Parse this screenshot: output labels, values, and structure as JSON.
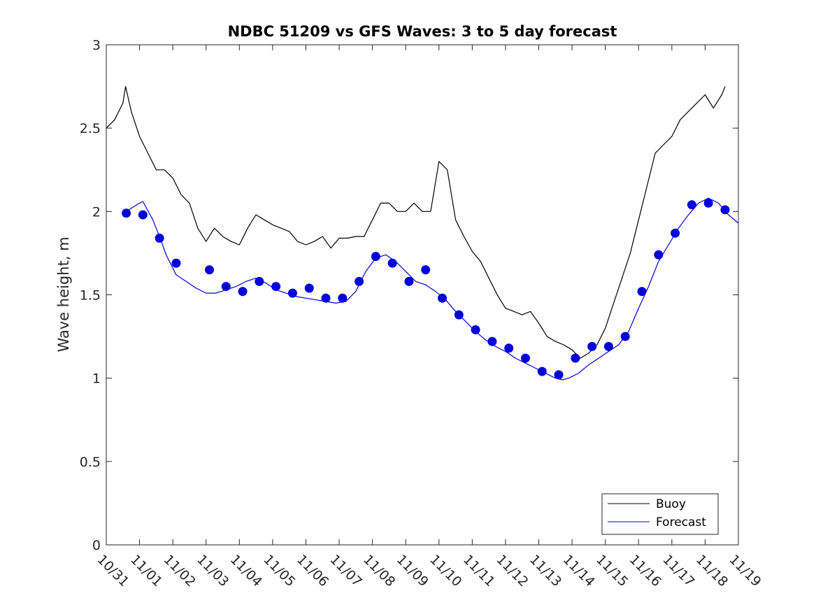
{
  "chart_data": {
    "type": "line",
    "title": "NDBC 51209 vs GFS Waves: 3 to 5 day forecast",
    "xlabel": "",
    "ylabel": "Wave height, m",
    "xlim": [
      0,
      19
    ],
    "ylim": [
      0,
      3
    ],
    "x_ticks": [
      0,
      1,
      2,
      3,
      4,
      5,
      6,
      7,
      8,
      9,
      10,
      11,
      12,
      13,
      14,
      15,
      16,
      17,
      18,
      19
    ],
    "x_tick_labels": [
      "10/31",
      "11/01",
      "11/02",
      "11/03",
      "11/04",
      "11/05",
      "11/06",
      "11/07",
      "11/08",
      "11/09",
      "11/10",
      "11/11",
      "11/12",
      "11/13",
      "11/14",
      "11/15",
      "11/16",
      "11/17",
      "11/18",
      "11/19"
    ],
    "y_ticks": [
      0,
      0.5,
      1,
      1.5,
      2,
      2.5,
      3
    ],
    "y_tick_labels": [
      "0",
      "0.5",
      "1",
      "1.5",
      "2",
      "2.5",
      "3"
    ],
    "grid": false,
    "legend": {
      "location": "bottom-right",
      "entries": [
        "Buoy",
        "Forecast"
      ]
    },
    "series": [
      {
        "name": "Buoy",
        "color": "#000000",
        "x": [
          0.0,
          0.25,
          0.5,
          0.58,
          0.75,
          1.0,
          1.25,
          1.5,
          1.75,
          2.0,
          2.25,
          2.5,
          2.75,
          3.0,
          3.25,
          3.5,
          3.75,
          4.0,
          4.25,
          4.5,
          4.75,
          5.0,
          5.25,
          5.5,
          5.75,
          6.0,
          6.25,
          6.5,
          6.75,
          7.0,
          7.25,
          7.5,
          7.75,
          8.0,
          8.25,
          8.5,
          8.75,
          9.0,
          9.25,
          9.5,
          9.75,
          10.0,
          10.25,
          10.5,
          10.75,
          11.0,
          11.25,
          11.5,
          11.75,
          12.0,
          12.25,
          12.5,
          12.75,
          13.0,
          13.25,
          13.5,
          13.75,
          14.0,
          14.25,
          14.5,
          14.75,
          15.0,
          15.25,
          15.5,
          15.75,
          16.0,
          16.25,
          16.5,
          16.75,
          17.0,
          17.25,
          17.5,
          17.75,
          18.0,
          18.25,
          18.5,
          18.6
        ],
        "values": [
          2.5,
          2.55,
          2.65,
          2.75,
          2.6,
          2.45,
          2.35,
          2.25,
          2.25,
          2.2,
          2.1,
          2.05,
          1.9,
          1.82,
          1.9,
          1.85,
          1.82,
          1.8,
          1.9,
          1.98,
          1.95,
          1.92,
          1.9,
          1.88,
          1.82,
          1.8,
          1.82,
          1.85,
          1.78,
          1.84,
          1.84,
          1.85,
          1.85,
          1.95,
          2.05,
          2.05,
          2.0,
          2.0,
          2.05,
          2.0,
          2.0,
          2.3,
          2.25,
          1.95,
          1.85,
          1.76,
          1.7,
          1.6,
          1.5,
          1.42,
          1.4,
          1.38,
          1.4,
          1.33,
          1.25,
          1.22,
          1.2,
          1.17,
          1.12,
          1.15,
          1.2,
          1.3,
          1.45,
          1.6,
          1.75,
          1.95,
          2.15,
          2.35,
          2.4,
          2.45,
          2.55,
          2.6,
          2.65,
          2.7,
          2.62,
          2.7,
          2.75
        ]
      },
      {
        "name": "Forecast",
        "color": "#0000dd",
        "markers_x": [
          0.6,
          1.1,
          1.6,
          2.1,
          3.1,
          3.6,
          4.1,
          4.6,
          5.1,
          5.6,
          6.1,
          6.6,
          7.1,
          7.6,
          8.1,
          8.6,
          9.1,
          9.6,
          10.1,
          10.6,
          11.1,
          11.6,
          12.1,
          12.6,
          13.1,
          13.6,
          14.1,
          14.6,
          15.1,
          15.6,
          16.1,
          16.6,
          17.1,
          17.6,
          18.1,
          18.6
        ],
        "markers_y": [
          1.99,
          1.98,
          1.84,
          1.69,
          1.65,
          1.55,
          1.52,
          1.58,
          1.55,
          1.51,
          1.54,
          1.48,
          1.48,
          1.58,
          1.73,
          1.69,
          1.58,
          1.65,
          1.48,
          1.38,
          1.29,
          1.22,
          1.18,
          1.12,
          1.04,
          1.02,
          1.12,
          1.19,
          1.19,
          1.25,
          1.52,
          1.74,
          1.87,
          2.04,
          2.05,
          2.01
        ],
        "x": [
          0.6,
          1.0,
          1.1,
          1.4,
          1.6,
          1.8,
          2.1,
          2.4,
          2.7,
          3.0,
          3.3,
          3.6,
          3.9,
          4.2,
          4.5,
          4.8,
          5.1,
          5.4,
          5.7,
          6.0,
          6.3,
          6.6,
          6.9,
          7.2,
          7.5,
          7.8,
          8.1,
          8.4,
          8.7,
          9.0,
          9.3,
          9.6,
          9.9,
          10.2,
          10.5,
          10.8,
          11.1,
          11.4,
          11.7,
          12.0,
          12.3,
          12.6,
          12.9,
          13.2,
          13.5,
          13.7,
          13.9,
          14.2,
          14.5,
          14.8,
          15.1,
          15.4,
          15.7,
          16.0,
          16.3,
          16.6,
          16.9,
          17.2,
          17.5,
          17.8,
          18.1,
          18.4,
          18.7,
          19.0
        ],
        "values": [
          2.0,
          2.05,
          2.06,
          1.95,
          1.85,
          1.74,
          1.62,
          1.58,
          1.54,
          1.51,
          1.51,
          1.53,
          1.55,
          1.58,
          1.6,
          1.57,
          1.53,
          1.51,
          1.49,
          1.48,
          1.47,
          1.46,
          1.45,
          1.46,
          1.52,
          1.64,
          1.72,
          1.74,
          1.7,
          1.64,
          1.58,
          1.56,
          1.52,
          1.47,
          1.4,
          1.34,
          1.28,
          1.23,
          1.19,
          1.16,
          1.12,
          1.09,
          1.06,
          1.03,
          1.0,
          0.99,
          1.0,
          1.03,
          1.08,
          1.12,
          1.16,
          1.2,
          1.28,
          1.42,
          1.55,
          1.7,
          1.8,
          1.9,
          1.98,
          2.05,
          2.08,
          2.05,
          1.98,
          1.93
        ]
      }
    ]
  }
}
